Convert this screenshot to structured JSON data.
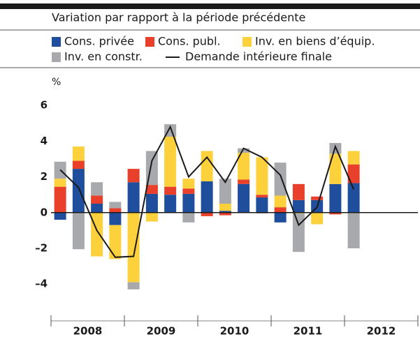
{
  "chart_data": {
    "type": "bar",
    "subtitle": "Variation par rapport à la période précédente",
    "y_unit": "%",
    "years": [
      "2008",
      "2009",
      "2010",
      "2011",
      "2012"
    ],
    "categories": [
      null,
      null,
      null,
      null,
      null,
      null,
      null,
      null,
      null,
      null,
      null,
      null,
      null,
      null,
      null,
      null,
      null
    ],
    "ylim": [
      -5.5,
      6.5
    ],
    "yticks": [
      {
        "value": -4,
        "label": "–4"
      },
      {
        "value": -2,
        "label": "–2"
      },
      0,
      2,
      4,
      6
    ],
    "series": [
      {
        "name": "Cons. privée",
        "color": "#1f4e9c",
        "values": [
          -0.4,
          2.45,
          0.5,
          -0.7,
          1.7,
          1.05,
          1.0,
          1.05,
          1.75,
          0.1,
          1.6,
          0.85,
          -0.55,
          0.7,
          0.7,
          1.6,
          1.65
        ]
      },
      {
        "name": "Cons. publ.",
        "color": "#e8402a",
        "values": [
          1.45,
          0.45,
          0.45,
          0.25,
          0.75,
          0.5,
          0.45,
          0.3,
          -0.2,
          -0.15,
          0.25,
          0.15,
          0.3,
          0.9,
          0.2,
          -0.1,
          1.05
        ]
      },
      {
        "name": "Inv. en biens d’équip.",
        "color": "#fdd13c",
        "values": [
          0.45,
          0.8,
          -2.45,
          -1.9,
          -3.9,
          -0.5,
          2.8,
          0.55,
          1.7,
          0.4,
          1.5,
          2.1,
          0.65,
          -0.05,
          -0.65,
          1.7,
          0.75
        ]
      },
      {
        "name": "Inv. en constr.",
        "color": "#a7a9ac",
        "values": [
          0.95,
          -2.05,
          0.75,
          0.35,
          -0.4,
          1.9,
          0.7,
          -0.55,
          0,
          1.4,
          0.25,
          -0.05,
          1.85,
          -2.15,
          0,
          0.6,
          -2.0
        ]
      },
      {
        "name": "Demande intérieure finale",
        "type": "line",
        "color": "#1a1a1a",
        "values": [
          2.4,
          1.4,
          -1.0,
          -2.5,
          -2.45,
          2.9,
          4.8,
          2.0,
          3.1,
          1.7,
          3.6,
          3.1,
          2.1,
          -0.7,
          0.3,
          3.7,
          1.3
        ]
      }
    ]
  }
}
